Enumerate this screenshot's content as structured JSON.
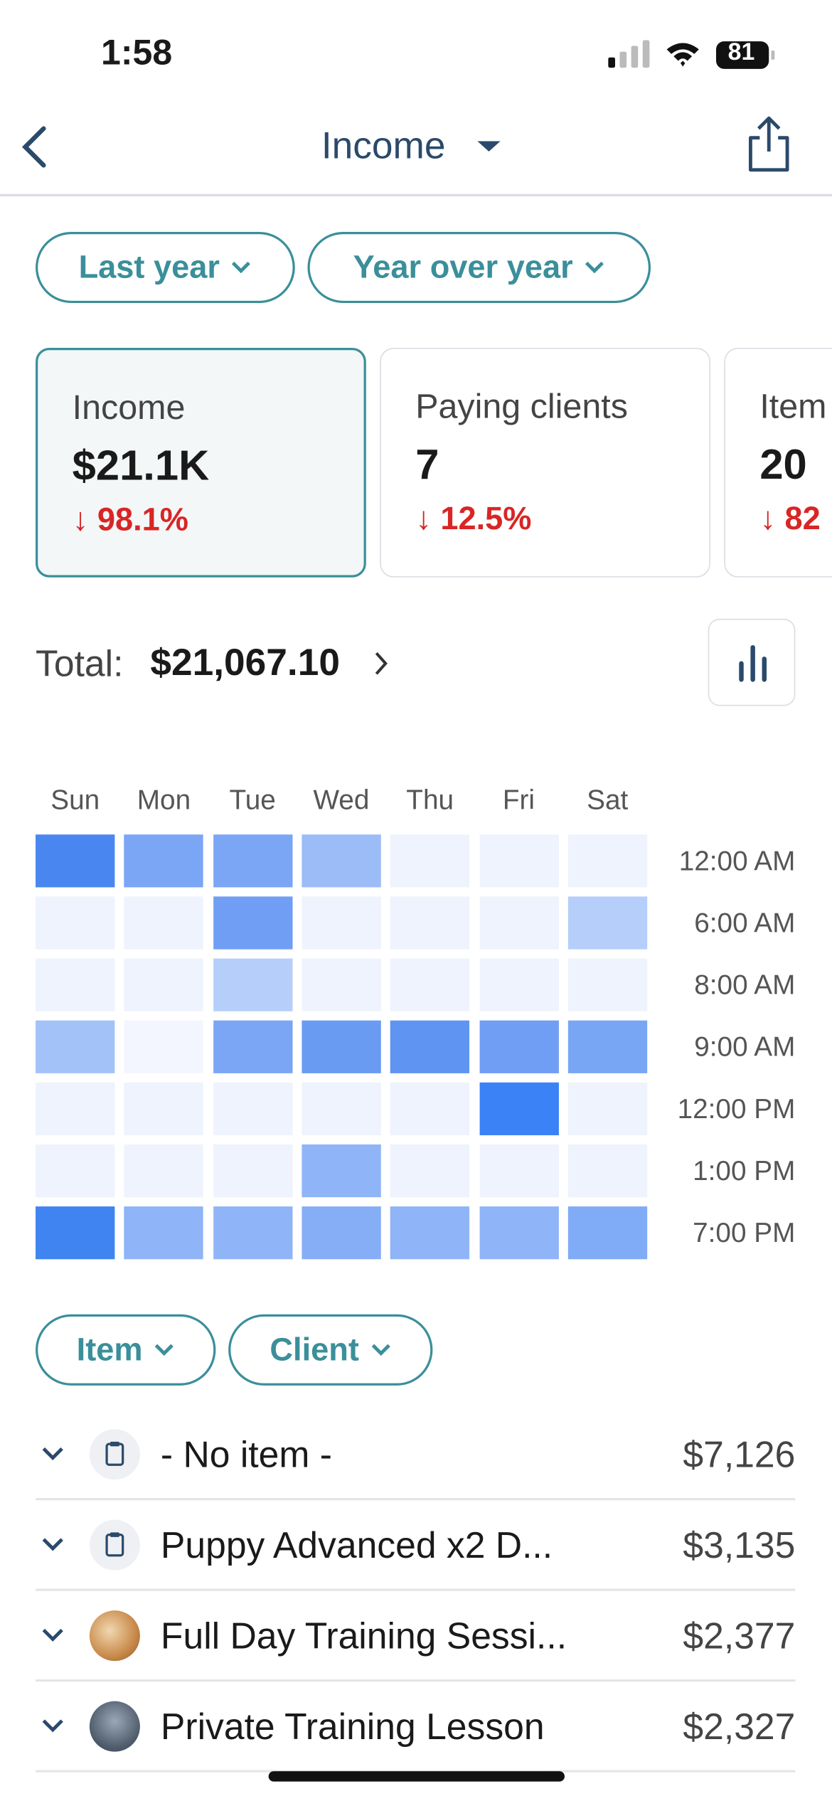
{
  "status_bar": {
    "time": "1:58",
    "battery": "81"
  },
  "header": {
    "title": "Income"
  },
  "filters": [
    "Last year",
    "Year over year"
  ],
  "cards": [
    {
      "label": "Income",
      "value": "$21.1K",
      "change": "98.1%"
    },
    {
      "label": "Paying clients",
      "value": "7",
      "change": "12.5%"
    },
    {
      "label": "Item",
      "value": "20",
      "change": "82"
    }
  ],
  "total": {
    "label": "Total:",
    "value": "$21,067.10"
  },
  "heatmap": {
    "days": [
      "Sun",
      "Mon",
      "Tue",
      "Wed",
      "Thu",
      "Fri",
      "Sat"
    ],
    "times": [
      "12:00 AM",
      "6:00 AM",
      "8:00 AM",
      "9:00 AM",
      "12:00 PM",
      "1:00 PM",
      "7:00 PM"
    ],
    "cell_colors": [
      [
        "#4a86f0",
        "#7ba5f5",
        "#7ba5f5",
        "#9bbcf7",
        "#eef3fd",
        "#eef3fd",
        "#eef3fd"
      ],
      [
        "#eef3fd",
        "#eef3fd",
        "#6f9ef4",
        "#eef3fd",
        "#eef3fd",
        "#eef3fd",
        "#b5cffa"
      ],
      [
        "#eef3fd",
        "#eef3fd",
        "#b5cffa",
        "#eef3fd",
        "#eef3fd",
        "#eef3fd",
        "#eef3fd"
      ],
      [
        "#a3c2f8",
        "#f3f6fe",
        "#7ba5f5",
        "#6a9bf3",
        "#5f94f3",
        "#6f9ef4",
        "#78a6f5"
      ],
      [
        "#eef3fd",
        "#eef3fd",
        "#eef3fd",
        "#eef3fd",
        "#eef3fd",
        "#3b82f6",
        "#eef3fd"
      ],
      [
        "#eef3fd",
        "#eef3fd",
        "#eef3fd",
        "#8fb4f7",
        "#eef3fd",
        "#eef3fd",
        "#eef3fd"
      ],
      [
        "#3f84f0",
        "#8fb4f7",
        "#8fb4f7",
        "#86aef6",
        "#8fb4f7",
        "#8fb4f7",
        "#80abf6"
      ]
    ]
  },
  "group_filters": [
    "Item",
    "Client"
  ],
  "list": [
    {
      "name": "- No item -",
      "amount": "$7,126"
    },
    {
      "name": "Puppy Advanced x2 D...",
      "amount": "$3,135"
    },
    {
      "name": "Full Day Training Sessi...",
      "amount": "$2,377"
    },
    {
      "name": "Private Training Lesson",
      "amount": "$2,327"
    }
  ]
}
